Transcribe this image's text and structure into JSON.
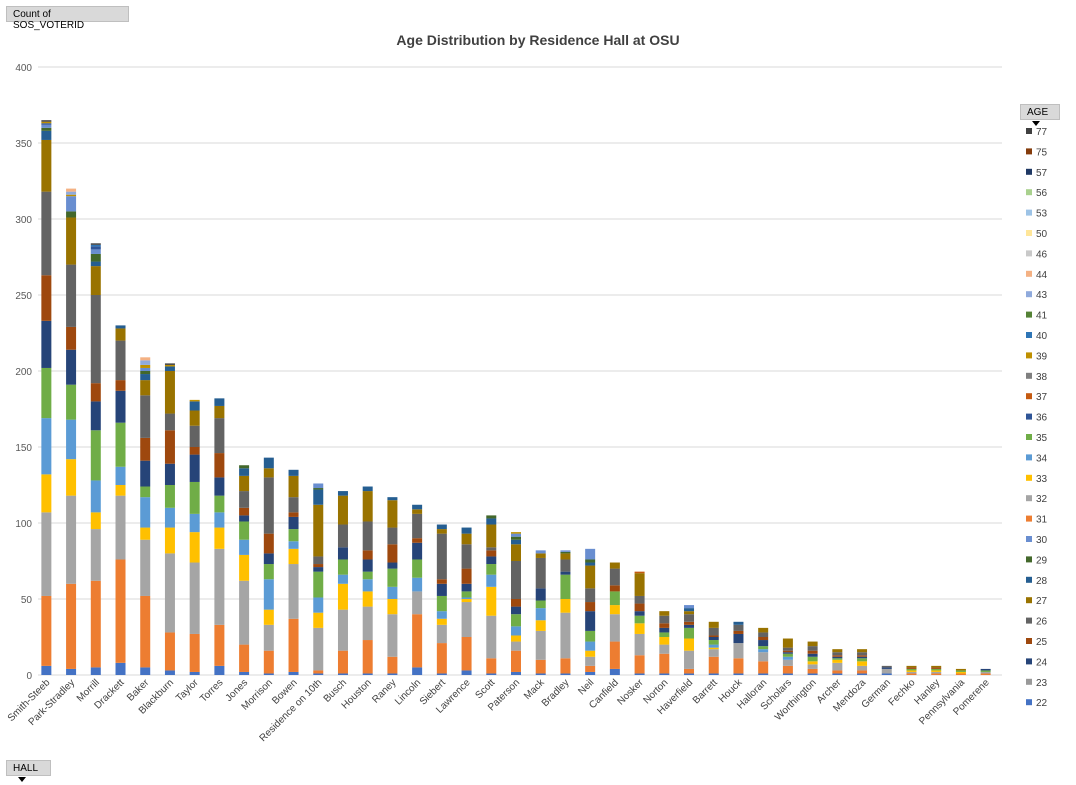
{
  "count_field_label": "Count of SOS_VOTERID",
  "legend_field_label": "AGE",
  "axis_field_label": "HALL",
  "icons": {
    "dropdown": "chevron-down-icon"
  },
  "chart_data": {
    "type": "bar",
    "stacked": true,
    "title": "Age Distribution by Residence Hall at OSU",
    "xlabel": "",
    "ylabel": "",
    "ylim": [
      0,
      400
    ],
    "yticks": [
      0,
      50,
      100,
      150,
      200,
      250,
      300,
      350,
      400
    ],
    "grid": true,
    "legend_position": "right",
    "legend_title": "AGE",
    "categories": [
      "Smith-Steeb",
      "Park-Stradley",
      "Morrill",
      "Drackett",
      "Baker",
      "Blackburn",
      "Taylor",
      "Torres",
      "Jones",
      "Morrison",
      "Bowen",
      "Residence on 10th",
      "Busch",
      "Houston",
      "Raney",
      "Lincoln",
      "Siebert",
      "Lawrence",
      "Scott",
      "Paterson",
      "Mack",
      "Bradley",
      "Neil",
      "Canfield",
      "Nosker",
      "Norton",
      "Haverfield",
      "Barrett",
      "Houck",
      "Halloran",
      "Scholars",
      "Worthington",
      "Archer",
      "Mendoza",
      "German",
      "Fechko",
      "Hanley",
      "Pennsylvania",
      "Pomerene"
    ],
    "series": [
      {
        "name": "22",
        "color": "#4472c4",
        "values": [
          6,
          4,
          5,
          8,
          5,
          3,
          2,
          6,
          2,
          1,
          2,
          1,
          1,
          1,
          1,
          5,
          1,
          3,
          1,
          2,
          1,
          1,
          2,
          4,
          1,
          1,
          1,
          1,
          1,
          1,
          1,
          1,
          1,
          1,
          1,
          0,
          0,
          0,
          0
        ]
      },
      {
        "name": "31",
        "color": "#ed7d31",
        "values": [
          46,
          56,
          57,
          68,
          47,
          25,
          25,
          27,
          18,
          15,
          35,
          2,
          15,
          22,
          11,
          35,
          20,
          22,
          10,
          14,
          9,
          10,
          4,
          18,
          12,
          13,
          3,
          11,
          10,
          8,
          5,
          3,
          2,
          2,
          0,
          1,
          1,
          1,
          1
        ]
      },
      {
        "name": "32",
        "color": "#a5a5a5",
        "values": [
          55,
          58,
          34,
          42,
          37,
          52,
          47,
          50,
          42,
          17,
          36,
          28,
          27,
          22,
          28,
          15,
          12,
          23,
          28,
          6,
          19,
          30,
          6,
          18,
          14,
          6,
          12,
          5,
          10,
          6,
          4,
          3,
          5,
          3,
          3,
          1,
          1,
          0,
          1
        ]
      },
      {
        "name": "33",
        "color": "#ffc000",
        "values": [
          25,
          24,
          11,
          7,
          8,
          17,
          20,
          14,
          17,
          10,
          10,
          10,
          17,
          10,
          10,
          0,
          4,
          2,
          19,
          4,
          7,
          9,
          4,
          6,
          7,
          5,
          8,
          1,
          0,
          0,
          0,
          2,
          2,
          3,
          0,
          1,
          1,
          1,
          0
        ]
      },
      {
        "name": "34",
        "color": "#5b9bd5",
        "values": [
          37,
          26,
          21,
          12,
          20,
          13,
          12,
          10,
          10,
          20,
          5,
          10,
          6,
          8,
          8,
          9,
          5,
          1,
          8,
          6,
          8,
          0,
          6,
          0,
          0,
          0,
          0,
          2,
          0,
          2,
          2,
          0,
          0,
          0,
          0,
          0,
          0,
          0,
          0
        ]
      },
      {
        "name": "35",
        "color": "#70ad47",
        "values": [
          33,
          23,
          33,
          29,
          7,
          15,
          21,
          11,
          12,
          10,
          8,
          17,
          10,
          5,
          12,
          12,
          10,
          4,
          7,
          8,
          5,
          16,
          7,
          9,
          5,
          3,
          7,
          3,
          0,
          2,
          2,
          3,
          1,
          2,
          0,
          1,
          1,
          1,
          1
        ]
      },
      {
        "name": "24",
        "color": "#264478",
        "values": [
          31,
          23,
          19,
          21,
          17,
          14,
          18,
          12,
          4,
          7,
          8,
          3,
          8,
          8,
          4,
          11,
          8,
          5,
          5,
          5,
          8,
          2,
          13,
          0,
          3,
          3,
          2,
          2,
          6,
          4,
          1,
          2,
          1,
          1,
          1,
          0,
          0,
          0,
          1
        ]
      },
      {
        "name": "25",
        "color": "#9e480e",
        "values": [
          30,
          15,
          12,
          7,
          15,
          22,
          5,
          16,
          5,
          13,
          3,
          2,
          0,
          6,
          12,
          3,
          3,
          10,
          4,
          5,
          0,
          0,
          6,
          4,
          5,
          3,
          2,
          1,
          2,
          2,
          1,
          2,
          1,
          1,
          0,
          1,
          1,
          0,
          0
        ]
      },
      {
        "name": "26",
        "color": "#636363",
        "values": [
          55,
          41,
          58,
          26,
          28,
          11,
          14,
          23,
          11,
          37,
          10,
          5,
          15,
          19,
          11,
          16,
          30,
          16,
          2,
          25,
          20,
          8,
          9,
          11,
          5,
          5,
          5,
          5,
          4,
          3,
          2,
          3,
          2,
          2,
          1,
          0,
          0,
          0,
          0
        ]
      },
      {
        "name": "27",
        "color": "#997300",
        "values": [
          34,
          31,
          19,
          8,
          10,
          28,
          10,
          8,
          10,
          6,
          14,
          34,
          19,
          20,
          18,
          3,
          3,
          7,
          15,
          11,
          3,
          4,
          15,
          4,
          15,
          3,
          2,
          4,
          0,
          3,
          6,
          3,
          2,
          2,
          0,
          1,
          1,
          1,
          0
        ]
      },
      {
        "name": "28",
        "color": "#255e91",
        "values": [
          6,
          0,
          3,
          2,
          4,
          3,
          6,
          5,
          5,
          7,
          4,
          10,
          3,
          3,
          2,
          3,
          3,
          4,
          4,
          3,
          0,
          0,
          2,
          0,
          0,
          0,
          2,
          0,
          2,
          0,
          0,
          0,
          0,
          0,
          0,
          0,
          0,
          0,
          0
        ]
      },
      {
        "name": "29",
        "color": "#43682b",
        "values": [
          2,
          4,
          5,
          0,
          2,
          0,
          0,
          0,
          2,
          0,
          0,
          1,
          0,
          0,
          0,
          0,
          0,
          0,
          2,
          2,
          0,
          1,
          2,
          0,
          0,
          0,
          0,
          0,
          0,
          0,
          0,
          0,
          0,
          0,
          0,
          0,
          0,
          0,
          0
        ]
      },
      {
        "name": "30",
        "color": "#698ed0",
        "values": [
          2,
          10,
          3,
          0,
          2,
          0,
          0,
          0,
          0,
          0,
          0,
          3,
          0,
          0,
          0,
          0,
          0,
          0,
          0,
          2,
          2,
          1,
          7,
          0,
          0,
          0,
          2,
          0,
          0,
          0,
          0,
          0,
          0,
          0,
          0,
          0,
          0,
          0,
          0
        ]
      },
      {
        "name": "36",
        "color": "#2f5597",
        "values": [
          1,
          0,
          2,
          0,
          0,
          0,
          0,
          0,
          0,
          0,
          0,
          0,
          0,
          0,
          0,
          0,
          0,
          0,
          0,
          0,
          0,
          0,
          0,
          0,
          0,
          0,
          0,
          0,
          0,
          0,
          0,
          0,
          0,
          0,
          0,
          0,
          0,
          0,
          0
        ]
      },
      {
        "name": "37",
        "color": "#c55a11",
        "values": [
          0,
          0,
          0,
          0,
          0,
          0,
          0,
          0,
          0,
          0,
          0,
          0,
          0,
          0,
          0,
          0,
          0,
          0,
          0,
          0,
          0,
          0,
          0,
          0,
          1,
          0,
          0,
          0,
          0,
          0,
          0,
          0,
          0,
          0,
          0,
          0,
          0,
          0,
          0
        ]
      },
      {
        "name": "38",
        "color": "#7f7f7f",
        "values": [
          0,
          0,
          0,
          0,
          0,
          0,
          0,
          0,
          0,
          0,
          0,
          0,
          0,
          0,
          0,
          0,
          0,
          0,
          0,
          0,
          0,
          0,
          0,
          0,
          0,
          0,
          0,
          0,
          0,
          0,
          0,
          0,
          0,
          0,
          0,
          0,
          0,
          0,
          0
        ]
      },
      {
        "name": "39",
        "color": "#bf9000",
        "values": [
          1,
          1,
          0,
          0,
          2,
          1,
          1,
          0,
          0,
          0,
          0,
          0,
          0,
          0,
          0,
          0,
          0,
          0,
          0,
          1,
          0,
          0,
          0,
          0,
          0,
          0,
          0,
          0,
          0,
          0,
          0,
          0,
          0,
          0,
          0,
          0,
          0,
          0,
          0
        ]
      },
      {
        "name": "40",
        "color": "#2e75b6",
        "values": [
          0,
          0,
          1,
          0,
          0,
          0,
          0,
          0,
          0,
          0,
          0,
          0,
          0,
          0,
          0,
          0,
          0,
          0,
          0,
          0,
          0,
          0,
          0,
          0,
          0,
          0,
          0,
          0,
          0,
          0,
          0,
          0,
          0,
          0,
          0,
          0,
          0,
          0,
          0
        ]
      },
      {
        "name": "41",
        "color": "#548235",
        "values": [
          0,
          0,
          0,
          0,
          0,
          0,
          0,
          0,
          0,
          0,
          0,
          0,
          0,
          0,
          0,
          0,
          0,
          0,
          0,
          0,
          0,
          0,
          0,
          0,
          0,
          0,
          0,
          0,
          0,
          0,
          0,
          0,
          0,
          0,
          0,
          0,
          0,
          0,
          0
        ]
      },
      {
        "name": "43",
        "color": "#8faadc",
        "values": [
          0,
          2,
          0,
          0,
          3,
          0,
          0,
          0,
          0,
          0,
          0,
          0,
          0,
          0,
          0,
          0,
          0,
          0,
          0,
          0,
          0,
          0,
          0,
          0,
          0,
          0,
          0,
          0,
          0,
          0,
          0,
          0,
          0,
          0,
          0,
          0,
          0,
          0,
          0
        ]
      },
      {
        "name": "44",
        "color": "#f4b183",
        "values": [
          0,
          2,
          0,
          0,
          2,
          0,
          0,
          0,
          0,
          0,
          0,
          0,
          0,
          0,
          0,
          0,
          0,
          0,
          0,
          0,
          0,
          0,
          0,
          0,
          0,
          0,
          0,
          0,
          0,
          0,
          0,
          0,
          0,
          0,
          0,
          0,
          0,
          0,
          0
        ]
      },
      {
        "name": "46",
        "color": "#c9c9c9",
        "values": [
          0,
          0,
          0,
          0,
          0,
          0,
          0,
          0,
          0,
          0,
          0,
          0,
          0,
          0,
          0,
          0,
          0,
          0,
          0,
          0,
          0,
          0,
          0,
          0,
          0,
          0,
          0,
          0,
          0,
          0,
          0,
          0,
          0,
          0,
          0,
          0,
          0,
          0,
          0
        ]
      },
      {
        "name": "50",
        "color": "#ffe699",
        "values": [
          0,
          0,
          0,
          0,
          0,
          0,
          0,
          0,
          0,
          0,
          0,
          0,
          0,
          0,
          0,
          0,
          0,
          0,
          0,
          0,
          0,
          0,
          0,
          0,
          0,
          0,
          0,
          0,
          0,
          0,
          0,
          0,
          0,
          0,
          0,
          0,
          0,
          0,
          0
        ]
      },
      {
        "name": "53",
        "color": "#9dc3e6",
        "values": [
          0,
          0,
          0,
          0,
          0,
          0,
          0,
          0,
          0,
          0,
          0,
          0,
          0,
          0,
          0,
          0,
          0,
          0,
          0,
          0,
          0,
          0,
          0,
          0,
          0,
          0,
          0,
          0,
          0,
          0,
          0,
          0,
          0,
          0,
          0,
          0,
          0,
          0,
          0
        ]
      },
      {
        "name": "56",
        "color": "#a9d18e",
        "values": [
          0,
          0,
          0,
          0,
          0,
          0,
          0,
          0,
          0,
          0,
          0,
          0,
          0,
          0,
          0,
          0,
          0,
          0,
          0,
          0,
          0,
          0,
          0,
          0,
          0,
          0,
          0,
          0,
          0,
          0,
          0,
          0,
          0,
          0,
          0,
          0,
          0,
          0,
          0
        ]
      },
      {
        "name": "57",
        "color": "#1f3864",
        "values": [
          0,
          0,
          0,
          0,
          0,
          0,
          0,
          0,
          0,
          0,
          0,
          0,
          0,
          0,
          0,
          0,
          0,
          0,
          0,
          0,
          0,
          0,
          0,
          0,
          0,
          0,
          0,
          0,
          0,
          0,
          0,
          0,
          0,
          0,
          0,
          0,
          0,
          0,
          0
        ]
      },
      {
        "name": "75",
        "color": "#843c0c",
        "values": [
          0,
          0,
          0,
          0,
          0,
          0,
          0,
          0,
          0,
          0,
          0,
          0,
          0,
          0,
          0,
          0,
          0,
          0,
          0,
          0,
          0,
          0,
          0,
          0,
          0,
          0,
          0,
          0,
          0,
          0,
          0,
          0,
          0,
          0,
          0,
          0,
          0,
          0,
          0
        ]
      },
      {
        "name": "77",
        "color": "#404040",
        "values": [
          1,
          0,
          1,
          0,
          0,
          1,
          0,
          0,
          0,
          0,
          0,
          0,
          0,
          0,
          0,
          0,
          0,
          0,
          0,
          0,
          0,
          0,
          0,
          0,
          0,
          0,
          0,
          0,
          0,
          0,
          0,
          0,
          0,
          0,
          0,
          0,
          0,
          0,
          0
        ]
      }
    ],
    "legend_order": [
      "77",
      "75",
      "57",
      "56",
      "53",
      "50",
      "46",
      "44",
      "43",
      "41",
      "40",
      "39",
      "38",
      "37",
      "36",
      "35",
      "34",
      "33",
      "32",
      "31",
      "30",
      "29",
      "28",
      "27",
      "26",
      "25",
      "24",
      "23",
      "22"
    ]
  }
}
